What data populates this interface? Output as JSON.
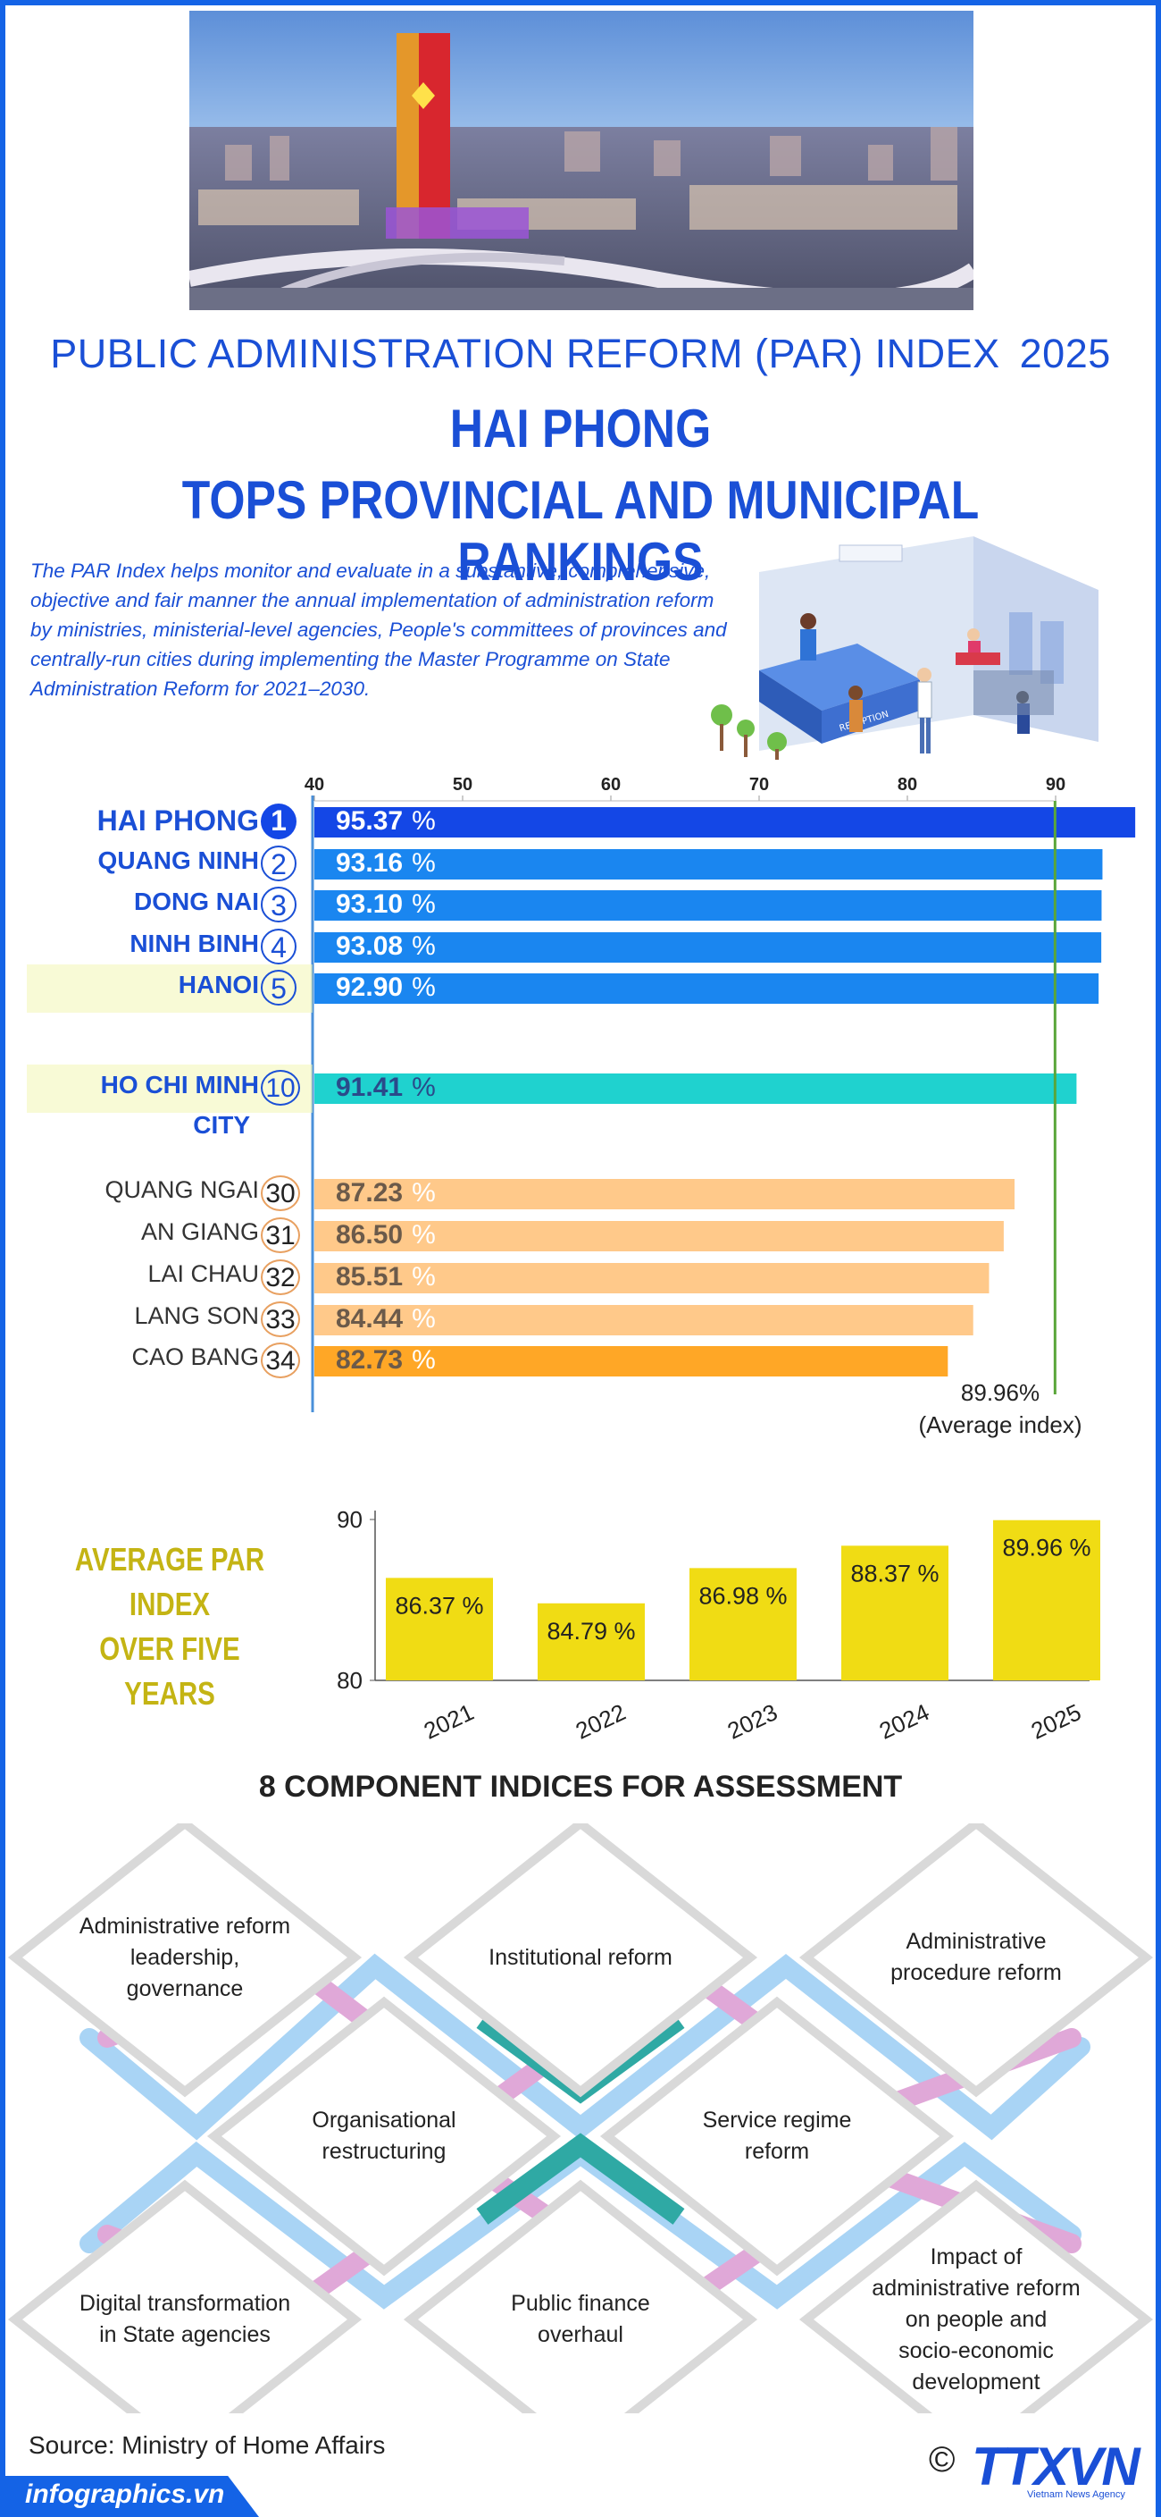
{
  "header": {
    "index_title": "PUBLIC ADMINISTRATION REFORM (PAR) INDEX",
    "year": "2025",
    "headline_1": "HAI PHONG",
    "headline_2": "TOPS PROVINCIAL AND MUNICIPAL RANKINGS"
  },
  "intro": "The PAR Index helps monitor and evaluate in a substantive, comprehensive, objective and fair manner the annual implementation of administration reform by ministries, ministerial-level agencies, People's committees of provinces and centrally-run cities during implementing the Master Programme on State Administration Reform for 2021–2030.",
  "illustration": {
    "desk_sign": "RECEPTION"
  },
  "chart_data": [
    {
      "type": "bar",
      "orientation": "horizontal",
      "axis_ticks": [
        "40",
        "50",
        "60",
        "70",
        "80",
        "90"
      ],
      "xlim": [
        40,
        97
      ],
      "reference_line": {
        "value": 89.96,
        "label": "89.96%",
        "sublabel": "(Average index)"
      },
      "unit": "%",
      "rows": [
        {
          "name": "HAI PHONG",
          "rank": "1",
          "value": 95.37,
          "value_text": "95.37",
          "color": "#1447e6",
          "style": "top"
        },
        {
          "name": "QUANG NINH",
          "rank": "2",
          "value": 93.16,
          "value_text": "93.16",
          "color": "#1a86f0",
          "style": "top"
        },
        {
          "name": "DONG NAI",
          "rank": "3",
          "value": 93.1,
          "value_text": "93.10",
          "color": "#1a86f0",
          "style": "top"
        },
        {
          "name": "NINH BINH",
          "rank": "4",
          "value": 93.08,
          "value_text": "93.08",
          "color": "#1a86f0",
          "style": "top"
        },
        {
          "name": "HANOI",
          "rank": "5",
          "value": 92.9,
          "value_text": "92.90",
          "color": "#1a86f0",
          "style": "top"
        },
        {
          "name": "HO CHI MINH",
          "name2": "CITY",
          "rank": "10",
          "value": 91.41,
          "value_text": "91.41",
          "color": "#1fd2cf",
          "style": "top"
        },
        {
          "name": "QUANG NGAI",
          "rank": "30",
          "value": 87.23,
          "value_text": "87.23",
          "color": "#ffc98a",
          "style": "low"
        },
        {
          "name": "AN GIANG",
          "rank": "31",
          "value": 86.5,
          "value_text": "86.50",
          "color": "#ffc98a",
          "style": "low"
        },
        {
          "name": "LAI CHAU",
          "rank": "32",
          "value": 85.51,
          "value_text": "85.51",
          "color": "#ffc98a",
          "style": "low"
        },
        {
          "name": "LANG SON",
          "rank": "33",
          "value": 84.44,
          "value_text": "84.44",
          "color": "#ffc98a",
          "style": "low"
        },
        {
          "name": "CAO BANG",
          "rank": "34",
          "value": 82.73,
          "value_text": "82.73",
          "color": "#ffa726",
          "style": "low"
        }
      ]
    },
    {
      "type": "bar",
      "title": "AVERAGE PAR INDEX OVER FIVE YEARS",
      "categories": [
        "2021",
        "2022",
        "2023",
        "2024",
        "2025"
      ],
      "values": [
        86.37,
        84.79,
        86.98,
        88.37,
        89.96
      ],
      "value_labels": [
        "86.37 %",
        "84.79 %",
        "86.98 %",
        "88.37 %",
        "89.96 %"
      ],
      "ylim": [
        80,
        90
      ],
      "yticks": [
        "80",
        "90"
      ],
      "color": "#f0dc14"
    }
  ],
  "average_chart": {
    "title_1": "AVERAGE PAR INDEX",
    "title_2": "OVER FIVE YEARS"
  },
  "components": {
    "title": "8 COMPONENT INDICES FOR ASSESSMENT",
    "items": [
      {
        "lines": [
          "Administrative reform",
          "leadership,",
          "governance"
        ]
      },
      {
        "lines": [
          "Institutional reform"
        ]
      },
      {
        "lines": [
          "Administrative",
          "procedure reform"
        ]
      },
      {
        "lines": [
          "Organisational",
          "restructuring"
        ]
      },
      {
        "lines": [
          "Service regime",
          "reform"
        ]
      },
      {
        "lines": [
          "Digital transformation",
          "in State agencies"
        ]
      },
      {
        "lines": [
          "Public finance",
          "overhaul"
        ]
      },
      {
        "lines": [
          "Impact of",
          "administrative reform",
          "on people and",
          "socio-economic",
          "development"
        ]
      }
    ]
  },
  "footer": {
    "source": "Source: Ministry of Home Affairs",
    "site": "infographics.vn",
    "copyright": "©",
    "logo": "TTXVN",
    "logo_sub": "Vietnam News Agency"
  }
}
